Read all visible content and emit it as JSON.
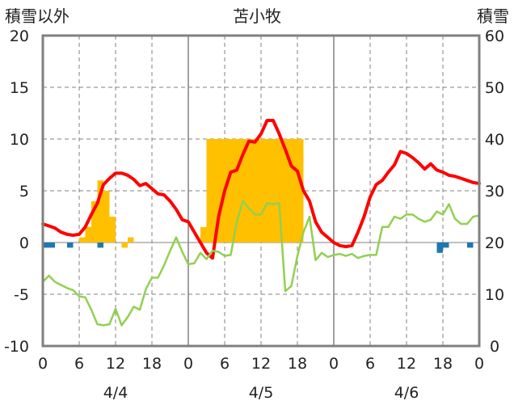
{
  "chart_data": {
    "type": "bar+line",
    "title": "苫小牧",
    "left_axis_label": "積雪以外",
    "right_axis_label": "積雪",
    "left_ylim": [
      -10,
      20
    ],
    "left_ticks": [
      "20",
      "15",
      "10",
      "5",
      "0",
      "-5",
      "-10"
    ],
    "right_ylim": [
      0,
      60
    ],
    "right_ticks": [
      "60",
      "50",
      "40",
      "30",
      "20",
      "10",
      "0"
    ],
    "x_range_hours": [
      0,
      72
    ],
    "x_tick_labels": [
      "0",
      "6",
      "12",
      "18",
      "0",
      "6",
      "12",
      "18",
      "0",
      "6",
      "12",
      "18",
      "0"
    ],
    "date_labels": [
      "4/4",
      "4/5",
      "4/6"
    ],
    "grid": true,
    "colors": {
      "snow_depth_bar": "#ffc000",
      "precip_bar": "#1f77b4",
      "red_line": "#ff0000",
      "green_line": "#92d050",
      "purple_line": "#7030a0",
      "frame": "#808080"
    },
    "series": [
      {
        "kind": "bar_right_axis",
        "x": [
          6,
          7,
          8,
          9,
          10,
          11,
          12,
          13,
          14,
          15,
          26,
          27,
          28,
          29,
          30,
          31,
          32,
          33,
          34,
          35,
          36,
          37,
          38,
          39,
          40,
          41,
          42,
          43,
          44,
          45,
          46,
          47,
          48,
          49,
          50,
          51,
          52,
          53,
          54,
          55,
          56,
          57,
          58,
          59,
          60,
          61,
          62,
          63,
          64,
          65,
          66,
          67,
          68,
          69,
          70,
          71
        ],
        "values": [
          21,
          23,
          28,
          32,
          30,
          25,
          20,
          19,
          21,
          20,
          23,
          40,
          40,
          40,
          40,
          40,
          40,
          40,
          40,
          40,
          40,
          40,
          40,
          40,
          40,
          40,
          40,
          20,
          20,
          20,
          20,
          20,
          20,
          20,
          20,
          20,
          20,
          20,
          20,
          20,
          20,
          20,
          20,
          20,
          20,
          20,
          20,
          20,
          20,
          20,
          20,
          20,
          20,
          20,
          20,
          20
        ]
      },
      {
        "kind": "bar_left_axis",
        "x": [
          0.5,
          1.5,
          4.5,
          9.5,
          65.5,
          66.5,
          70.5
        ],
        "values": [
          -0.5,
          -0.5,
          -0.5,
          -0.5,
          -1.0,
          -0.5,
          -0.5
        ]
      },
      {
        "kind": "line",
        "x": [
          0,
          1,
          2,
          3,
          4,
          5,
          6,
          7,
          8,
          9,
          10,
          11,
          12,
          13,
          14,
          15,
          16,
          17,
          18,
          19,
          20,
          21,
          22,
          23,
          24,
          25,
          26,
          27,
          28,
          29,
          30,
          31,
          32,
          33,
          34,
          35,
          36,
          37,
          38,
          39,
          40,
          41,
          42,
          43,
          44,
          45,
          46,
          47,
          48,
          49,
          50,
          51,
          52,
          53,
          54,
          55,
          56,
          57,
          58,
          59,
          60,
          61,
          62,
          63,
          64,
          65,
          66,
          67,
          68,
          69,
          70,
          71,
          72
        ],
        "values": [
          1.8,
          1.6,
          1.4,
          1.0,
          0.8,
          0.7,
          0.8,
          1.5,
          2.7,
          3.8,
          5.6,
          6.2,
          6.7,
          6.7,
          6.5,
          6.1,
          5.5,
          5.7,
          5.2,
          4.7,
          4.6,
          4.0,
          3.2,
          2.2,
          2.0,
          1.0,
          0.0,
          -1.0,
          -1.5,
          2.5,
          5.0,
          6.8,
          7.0,
          8.5,
          9.8,
          9.7,
          10.5,
          11.8,
          11.8,
          10.5,
          9.0,
          7.4,
          6.9,
          5.0,
          4.0,
          2.0,
          1.0,
          0.5,
          0.0,
          -0.3,
          -0.4,
          -0.3,
          1.0,
          2.5,
          4.4,
          5.6,
          6.0,
          6.8,
          7.5,
          8.8,
          8.6,
          8.2,
          7.7,
          7.1,
          7.6,
          7.0,
          6.8,
          6.5,
          6.4,
          6.2,
          6.0,
          5.8,
          5.7
        ]
      },
      {
        "kind": "line",
        "x": [
          0,
          1,
          2,
          3,
          4,
          5,
          6,
          7,
          8,
          9,
          10,
          11,
          12,
          13,
          14,
          15,
          16,
          17,
          18,
          19,
          20,
          21,
          22,
          23,
          24,
          25,
          26,
          27,
          28,
          29,
          30,
          31,
          32,
          33,
          34,
          35,
          36,
          37,
          38,
          39,
          40,
          41,
          42,
          43,
          44,
          45,
          46,
          47,
          48,
          49,
          50,
          51,
          52,
          53,
          54,
          55,
          56,
          57,
          58,
          59,
          60,
          61,
          62,
          63,
          64,
          65,
          66,
          67,
          68,
          69,
          70,
          71,
          72
        ],
        "values": [
          -3.8,
          -3.2,
          -3.8,
          -4.1,
          -4.4,
          -4.6,
          -5.2,
          -5.3,
          -6.5,
          -7.9,
          -8.0,
          -7.9,
          -6.4,
          -8.0,
          -7.2,
          -6.2,
          -6.5,
          -4.5,
          -3.4,
          -3.4,
          -2.2,
          -0.8,
          0.5,
          -0.9,
          -2.1,
          -2.0,
          -1.0,
          -1.6,
          -0.8,
          -0.9,
          -1.3,
          -1.2,
          2.0,
          4.0,
          3.3,
          2.7,
          2.7,
          3.8,
          3.7,
          3.8,
          -4.7,
          -4.2,
          -1.3,
          1.0,
          2.5,
          -1.7,
          -1.0,
          -1.4,
          -1.2,
          -1.1,
          -1.3,
          -1.1,
          -1.5,
          -1.3,
          -1.2,
          -1.2,
          1.5,
          1.5,
          2.5,
          2.3,
          2.7,
          2.7,
          2.3,
          2.0,
          2.2,
          3.0,
          2.7,
          3.7,
          2.3,
          1.8,
          1.8,
          2.5,
          2.6
        ]
      },
      {
        "kind": "line",
        "x": [
          0,
          72
        ],
        "values": [
          -10,
          -10
        ]
      }
    ]
  }
}
